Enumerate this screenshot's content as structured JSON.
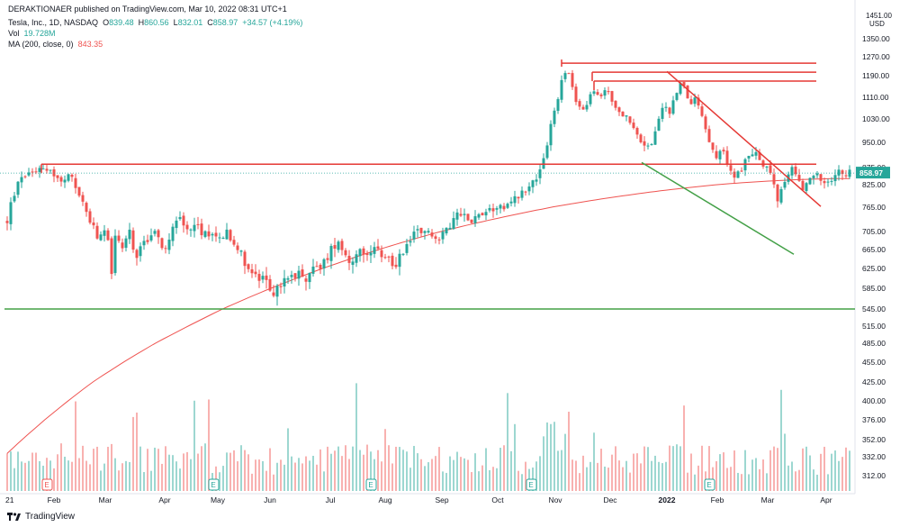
{
  "header": {
    "publisher_line": "DERAKTIONAER published on TradingView.com, Mar 10, 2022 08:31 UTC+1",
    "symbol": "Tesla, Inc., 1D, NASDAQ",
    "open_label": "O",
    "open": "839.48",
    "high_label": "H",
    "high": "860.56",
    "low_label": "L",
    "low": "832.01",
    "close_label": "C",
    "close": "858.97",
    "change": "+34.57 (+4.19%)",
    "vol_label": "Vol",
    "vol": "19.728M",
    "ma_label": "MA (200, close, 0)",
    "ma": "843.35"
  },
  "footer": {
    "brand": "TradingView"
  },
  "colors": {
    "up": "#26a69a",
    "down": "#ef5350",
    "resistance": "#e53935",
    "support": "#43a047",
    "ma": "#ef5350",
    "last_price_bg": "#26a69a"
  },
  "chart_data": {
    "type": "candlestick",
    "price_axis": {
      "currency": "USD",
      "ticks": [
        "1350.00",
        "1270.00",
        "1190.00",
        "1110.00",
        "1030.00",
        "950.00",
        "875.00",
        "825.00",
        "765.00",
        "705.00",
        "665.00",
        "625.00",
        "585.00",
        "545.00",
        "515.00",
        "485.00",
        "455.00",
        "425.00",
        "400.00",
        "376.00",
        "352.00",
        "332.00",
        "312.00"
      ],
      "top_tick": "1451.00",
      "last_price": "858.97"
    },
    "time_axis": {
      "labels": [
        "21",
        "Feb",
        "Mar",
        "Apr",
        "May",
        "Jun",
        "Jul",
        "Aug",
        "Sep",
        "Oct",
        "Nov",
        "Dec",
        "2022",
        "Feb",
        "Mar",
        "Apr"
      ]
    },
    "earnings_markers": [
      "E",
      "E",
      "E",
      "E",
      "E"
    ],
    "annotations": {
      "horizontal_levels": [
        1243,
        1205,
        1170,
        885,
        545
      ],
      "descending_resistance_trendline": [
        [
          "2022-01-03",
          1208
        ],
        [
          "2022-03-31",
          767
        ]
      ],
      "descending_support_trendline": [
        [
          "2021-12-20",
          890
        ],
        [
          "2022-03-25",
          655
        ]
      ],
      "moving_average": "MA 200"
    }
  }
}
